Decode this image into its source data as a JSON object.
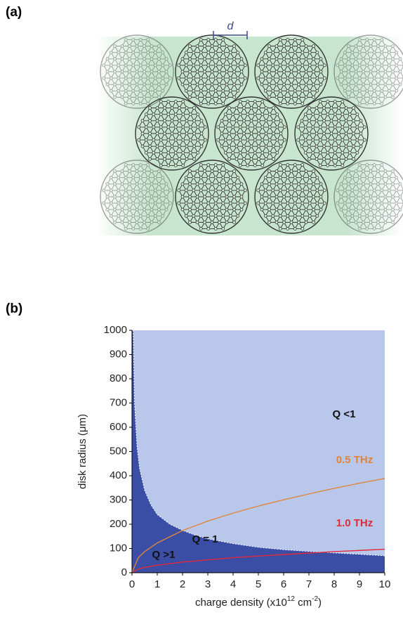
{
  "panel_a": {
    "label": "(a)",
    "spacing_label": "d"
  },
  "panel_b_label": "(b)",
  "chart_data": {
    "type": "area-line",
    "xlabel": [
      {
        "text": "charge density (x10"
      },
      {
        "text": "12",
        "sup": true
      },
      {
        "text": " cm"
      },
      {
        "text": "-2",
        "sup": true
      },
      {
        "text": ")"
      }
    ],
    "ylabel": "disk radius (μm)",
    "xlim": [
      0,
      10
    ],
    "ylim": [
      0,
      1000
    ],
    "xticks": [
      0,
      1,
      2,
      3,
      4,
      5,
      6,
      7,
      8,
      9,
      10
    ],
    "yticks": [
      0,
      100,
      200,
      300,
      400,
      500,
      600,
      700,
      800,
      900,
      1000
    ],
    "background": "#b9c7ea",
    "series": [
      {
        "name": "Q = 1",
        "color": "#3b4ea6",
        "fill_below": true,
        "x": [
          0.05,
          0.1,
          0.2,
          0.3,
          0.5,
          0.75,
          1,
          1.5,
          2,
          2.5,
          3,
          4,
          5,
          6,
          7,
          8,
          9,
          10
        ],
        "values": [
          1000,
          700,
          520,
          430,
          340,
          280,
          240,
          200,
          175,
          155,
          140,
          120,
          105,
          95,
          88,
          82,
          76,
          70
        ]
      },
      {
        "name": "0.5 THz",
        "color": "#e0843a",
        "x": [
          0,
          0.25,
          0.5,
          1,
          2,
          3,
          4,
          5,
          6,
          7,
          8,
          9,
          10
        ],
        "values": [
          0,
          62,
          87,
          123,
          174,
          213,
          246,
          275,
          301,
          325,
          348,
          369,
          389
        ]
      },
      {
        "name": "1.0 THz",
        "color": "#e02a3a",
        "x": [
          0,
          0.25,
          0.5,
          1,
          2,
          3,
          4,
          5,
          6,
          7,
          8,
          9,
          10
        ],
        "values": [
          0,
          15,
          22,
          31,
          44,
          53,
          62,
          69,
          75,
          81,
          87,
          92,
          97
        ]
      }
    ],
    "annotations": [
      "Q <1",
      "Q >1"
    ]
  }
}
